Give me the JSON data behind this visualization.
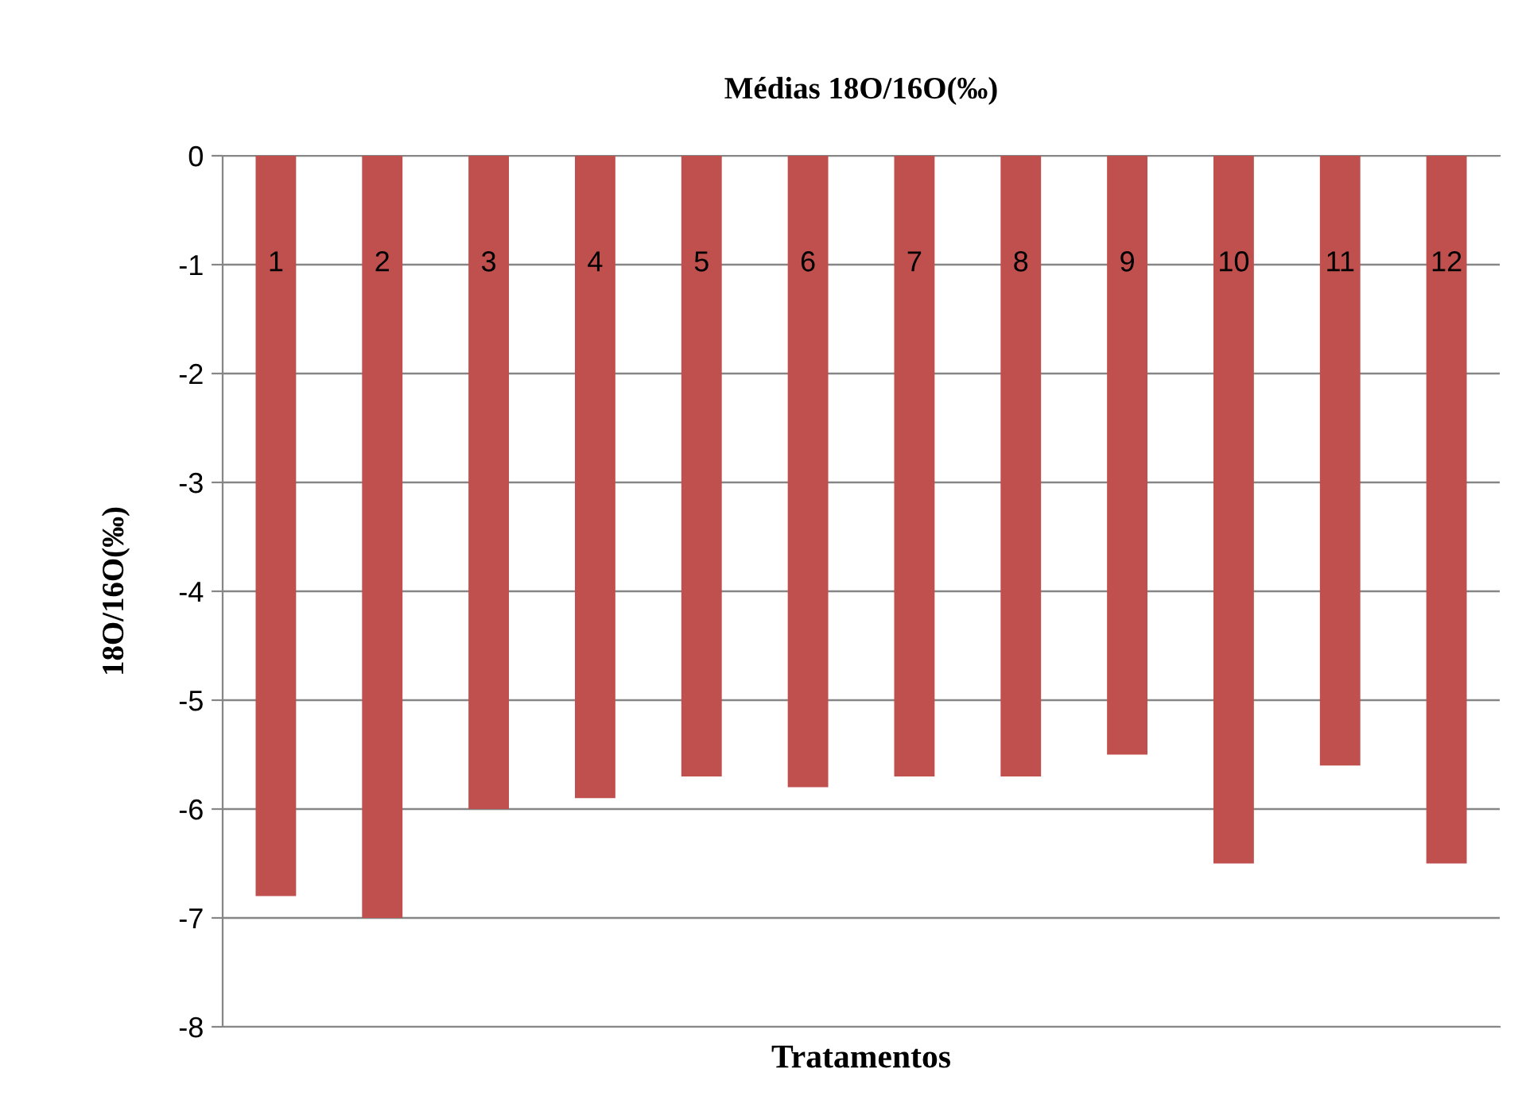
{
  "chart_data": {
    "type": "bar",
    "title": "Médias 18O/16O(‰)",
    "xlabel": "Tratamentos",
    "ylabel": "18O/16O(‰)",
    "categories": [
      "1",
      "2",
      "3",
      "4",
      "5",
      "6",
      "7",
      "8",
      "9",
      "10",
      "11",
      "12"
    ],
    "values": [
      -6.8,
      -7.0,
      -6.0,
      -5.9,
      -5.7,
      -5.8,
      -5.7,
      -5.7,
      -5.5,
      -6.5,
      -5.6,
      -6.5
    ],
    "color": "#c0504d",
    "ylim": [
      -8,
      0
    ],
    "yticks": [
      -8,
      -7,
      -6,
      -5,
      -4,
      -3,
      -2,
      -1,
      0
    ],
    "grid": "y",
    "legend": false
  }
}
